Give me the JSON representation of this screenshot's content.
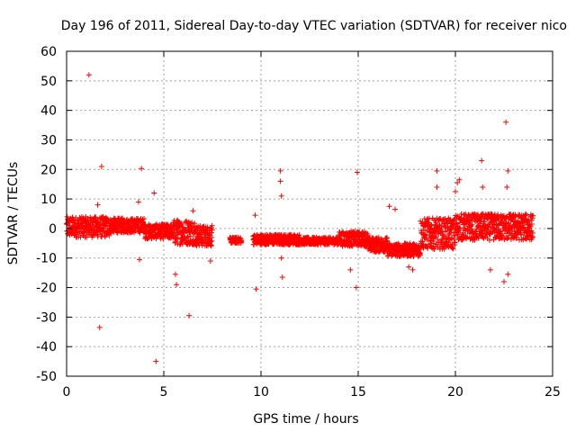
{
  "chart_data": {
    "type": "scatter",
    "title": "Day 196 of 2011, Sidereal Day-to-day VTEC variation (SDTVAR) for receiver nico",
    "xlabel": "GPS time / hours",
    "ylabel": "SDTVAR / TECUs",
    "xlim": [
      0,
      25
    ],
    "ylim": [
      -50,
      60
    ],
    "xticks": [
      0,
      5,
      10,
      15,
      20,
      25
    ],
    "xtick_labels": [
      "0",
      "5",
      "10",
      "15",
      "20",
      "25"
    ],
    "yticks": [
      -50,
      -40,
      -30,
      -20,
      -10,
      0,
      10,
      20,
      30,
      40,
      50,
      60
    ],
    "ytick_labels": [
      "-50",
      "-40",
      "-30",
      "-20",
      "-10",
      "0",
      "10",
      "20",
      "30",
      "40",
      "50",
      "60"
    ],
    "grid": true,
    "marker": "+",
    "marker_color": "#ff0000",
    "series": [
      {
        "name": "SDTVAR",
        "points": [
          [
            1.15,
            52
          ],
          [
            1.8,
            21
          ],
          [
            1.7,
            -33.5
          ],
          [
            3.85,
            20.3
          ],
          [
            4.5,
            12
          ],
          [
            4.6,
            -45
          ],
          [
            5.6,
            -15.5
          ],
          [
            5.65,
            -19
          ],
          [
            6.3,
            -29.5
          ],
          [
            9.7,
            4.5
          ],
          [
            9.75,
            -20.5
          ],
          [
            11.0,
            19.5
          ],
          [
            11.0,
            16
          ],
          [
            11.05,
            11
          ],
          [
            11.1,
            -16.5
          ],
          [
            11.05,
            -10
          ],
          [
            14.95,
            19
          ],
          [
            14.9,
            -20
          ],
          [
            14.6,
            -14
          ],
          [
            16.6,
            7.5
          ],
          [
            16.9,
            6.5
          ],
          [
            17.6,
            -13
          ],
          [
            17.8,
            -14
          ],
          [
            19.05,
            19.5
          ],
          [
            19.05,
            14
          ],
          [
            20.1,
            15.5
          ],
          [
            20.2,
            16.5
          ],
          [
            20.0,
            12.5
          ],
          [
            21.35,
            23
          ],
          [
            21.4,
            14
          ],
          [
            22.6,
            36
          ],
          [
            22.7,
            19.5
          ],
          [
            22.65,
            14
          ],
          [
            22.7,
            -15.5
          ],
          [
            22.5,
            -18
          ],
          [
            21.8,
            -14
          ],
          [
            7.4,
            -11
          ],
          [
            1.6,
            8
          ],
          [
            3.7,
            9
          ],
          [
            3.75,
            -10.5
          ],
          [
            6.3,
            2
          ],
          [
            6.5,
            6
          ]
        ]
      }
    ],
    "bands": [
      {
        "x0": 0.0,
        "x1": 2.2,
        "ylo": -3,
        "yhi": 4
      },
      {
        "x0": 2.2,
        "x1": 4.0,
        "ylo": -1.5,
        "yhi": 3.5
      },
      {
        "x0": 4.0,
        "x1": 5.5,
        "ylo": -3.5,
        "yhi": 1.5
      },
      {
        "x0": 5.5,
        "x1": 6.6,
        "ylo": -5.5,
        "yhi": 3
      },
      {
        "x0": 6.6,
        "x1": 7.5,
        "ylo": -6,
        "yhi": 1
      },
      {
        "x0": 8.4,
        "x1": 9.0,
        "ylo": -5,
        "yhi": -3
      },
      {
        "x0": 9.6,
        "x1": 12.0,
        "ylo": -5.5,
        "yhi": -2
      },
      {
        "x0": 12.0,
        "x1": 14.0,
        "ylo": -5.5,
        "yhi": -3
      },
      {
        "x0": 14.0,
        "x1": 15.5,
        "ylo": -6,
        "yhi": -1
      },
      {
        "x0": 15.5,
        "x1": 16.5,
        "ylo": -8,
        "yhi": -3
      },
      {
        "x0": 16.5,
        "x1": 18.2,
        "ylo": -9.5,
        "yhi": -5
      },
      {
        "x0": 18.2,
        "x1": 20.0,
        "ylo": -7,
        "yhi": 3.5
      },
      {
        "x0": 20.0,
        "x1": 24.0,
        "ylo": -4,
        "yhi": 5
      }
    ]
  }
}
